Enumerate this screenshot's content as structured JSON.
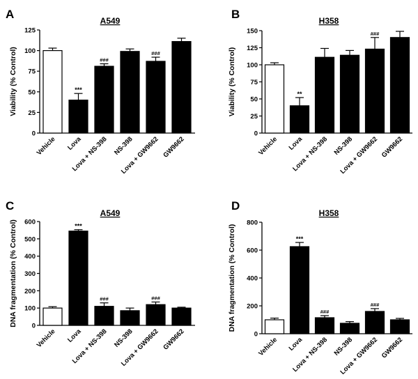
{
  "chart_data": [
    {
      "id": "A",
      "panel_letter": "A",
      "type": "bar",
      "title": "A549",
      "ylabel": "Viability (% Control)",
      "ylim": [
        0,
        125
      ],
      "yticks": [
        0,
        25,
        50,
        75,
        100,
        125
      ],
      "categories": [
        "Vehicle",
        "Lova",
        "Lova + NS-398",
        "NS-398",
        "Lova + GW9662",
        "GW9662"
      ],
      "values": [
        100,
        40,
        81,
        99,
        87,
        111
      ],
      "errors": [
        3,
        8,
        3,
        3,
        5,
        4
      ],
      "fills": [
        "#ffffff",
        "#000000",
        "#000000",
        "#000000",
        "#000000",
        "#000000"
      ],
      "annotations": [
        "",
        "***",
        "###",
        "",
        "###",
        ""
      ]
    },
    {
      "id": "B",
      "panel_letter": "B",
      "type": "bar",
      "title": "H358",
      "ylabel": "Viability (% Control)",
      "ylim": [
        0,
        150
      ],
      "yticks": [
        0,
        25,
        50,
        75,
        100,
        125,
        150
      ],
      "categories": [
        "Vehicle",
        "Lova",
        "Lova + NS-398",
        "NS-398",
        "Lova + GW9662",
        "GW9662"
      ],
      "values": [
        100,
        40,
        111,
        114,
        123,
        140
      ],
      "errors": [
        3,
        12,
        13,
        7,
        17,
        9
      ],
      "fills": [
        "#ffffff",
        "#000000",
        "#000000",
        "#000000",
        "#000000",
        "#000000"
      ],
      "annotations": [
        "",
        "**",
        "",
        "",
        "###",
        ""
      ]
    },
    {
      "id": "C",
      "panel_letter": "C",
      "type": "bar",
      "title": "A549",
      "ylabel": "DNA fragmentation (% Control)",
      "ylim": [
        0,
        600
      ],
      "yticks": [
        0,
        100,
        200,
        300,
        400,
        500,
        600
      ],
      "categories": [
        "Vehicle",
        "Lova",
        "Lova + NS-398",
        "NS-398",
        "Lova + GW9662",
        "GW9662"
      ],
      "values": [
        100,
        545,
        110,
        85,
        120,
        100
      ],
      "errors": [
        8,
        8,
        20,
        15,
        15,
        5
      ],
      "fills": [
        "#ffffff",
        "#000000",
        "#000000",
        "#000000",
        "#000000",
        "#000000"
      ],
      "annotations": [
        "",
        "***",
        "###",
        "",
        "###",
        ""
      ]
    },
    {
      "id": "D",
      "panel_letter": "D",
      "type": "bar",
      "title": "H358",
      "ylabel": "DNA fragmentation (% Control)",
      "ylim": [
        0,
        800
      ],
      "yticks": [
        0,
        200,
        400,
        600,
        800
      ],
      "categories": [
        "Vehicle",
        "Lova",
        "Lova + NS-398",
        "NS-398",
        "Lova + GW9662",
        "GW9662"
      ],
      "values": [
        100,
        625,
        115,
        75,
        160,
        100
      ],
      "errors": [
        12,
        30,
        15,
        12,
        20,
        10
      ],
      "fills": [
        "#ffffff",
        "#000000",
        "#000000",
        "#000000",
        "#000000",
        "#000000"
      ],
      "annotations": [
        "",
        "***",
        "###",
        "",
        "###",
        ""
      ]
    }
  ]
}
